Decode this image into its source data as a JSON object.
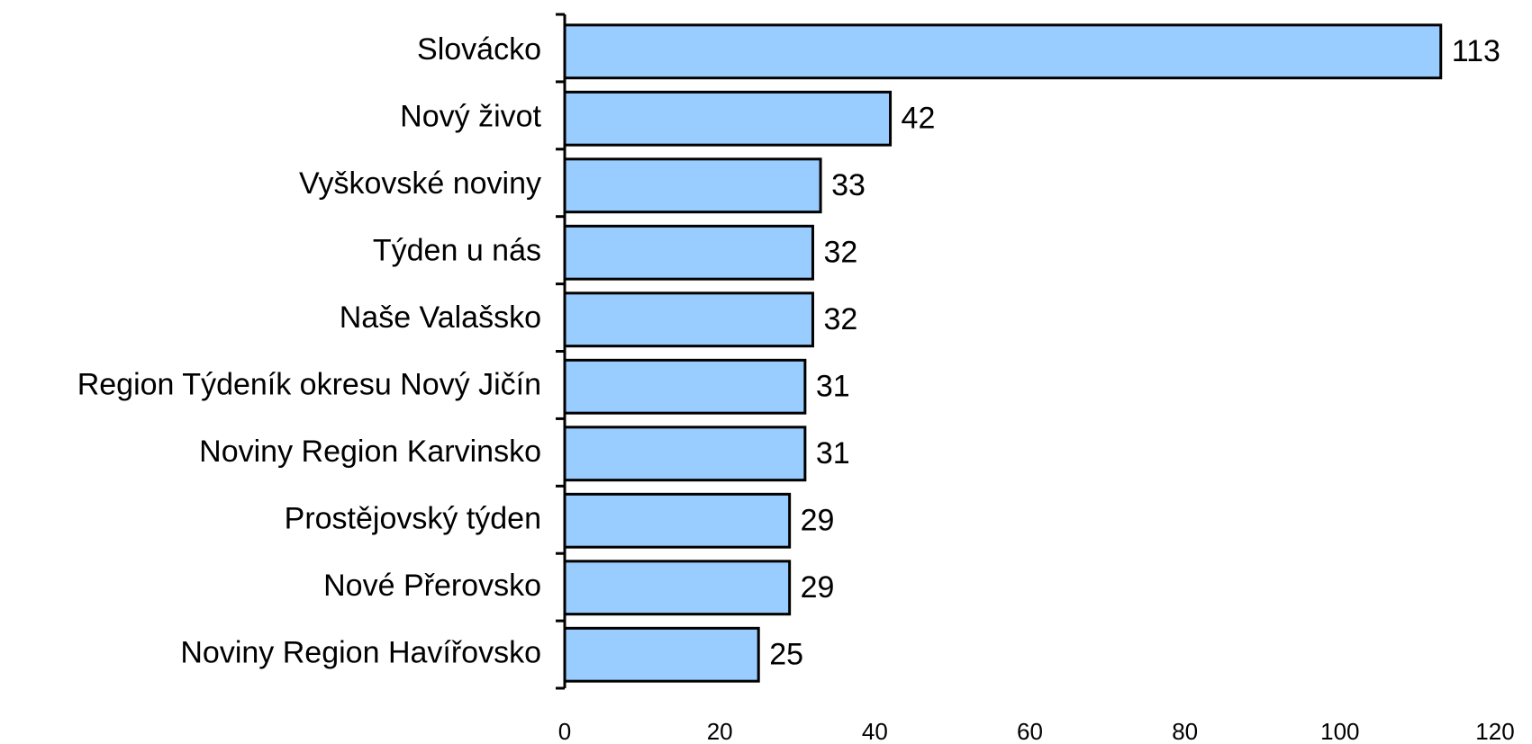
{
  "chart_data": {
    "type": "bar",
    "orientation": "horizontal",
    "categories": [
      "Slovácko",
      "Nový život",
      "Vyškovské noviny",
      "Týden u nás",
      "Naše Valašsko",
      "Region Týdeník okresu Nový Jičín",
      "Noviny Region Karvinsko",
      "Prostějovský týden",
      "Nové Přerovsko",
      "Noviny Region Havířovsko"
    ],
    "values": [
      113,
      42,
      33,
      32,
      32,
      31,
      31,
      29,
      29,
      25
    ],
    "color": "#99ccff",
    "xlim": [
      0,
      120
    ],
    "xticks": [
      0,
      20,
      40,
      60,
      80,
      100,
      120
    ],
    "grid": false
  }
}
